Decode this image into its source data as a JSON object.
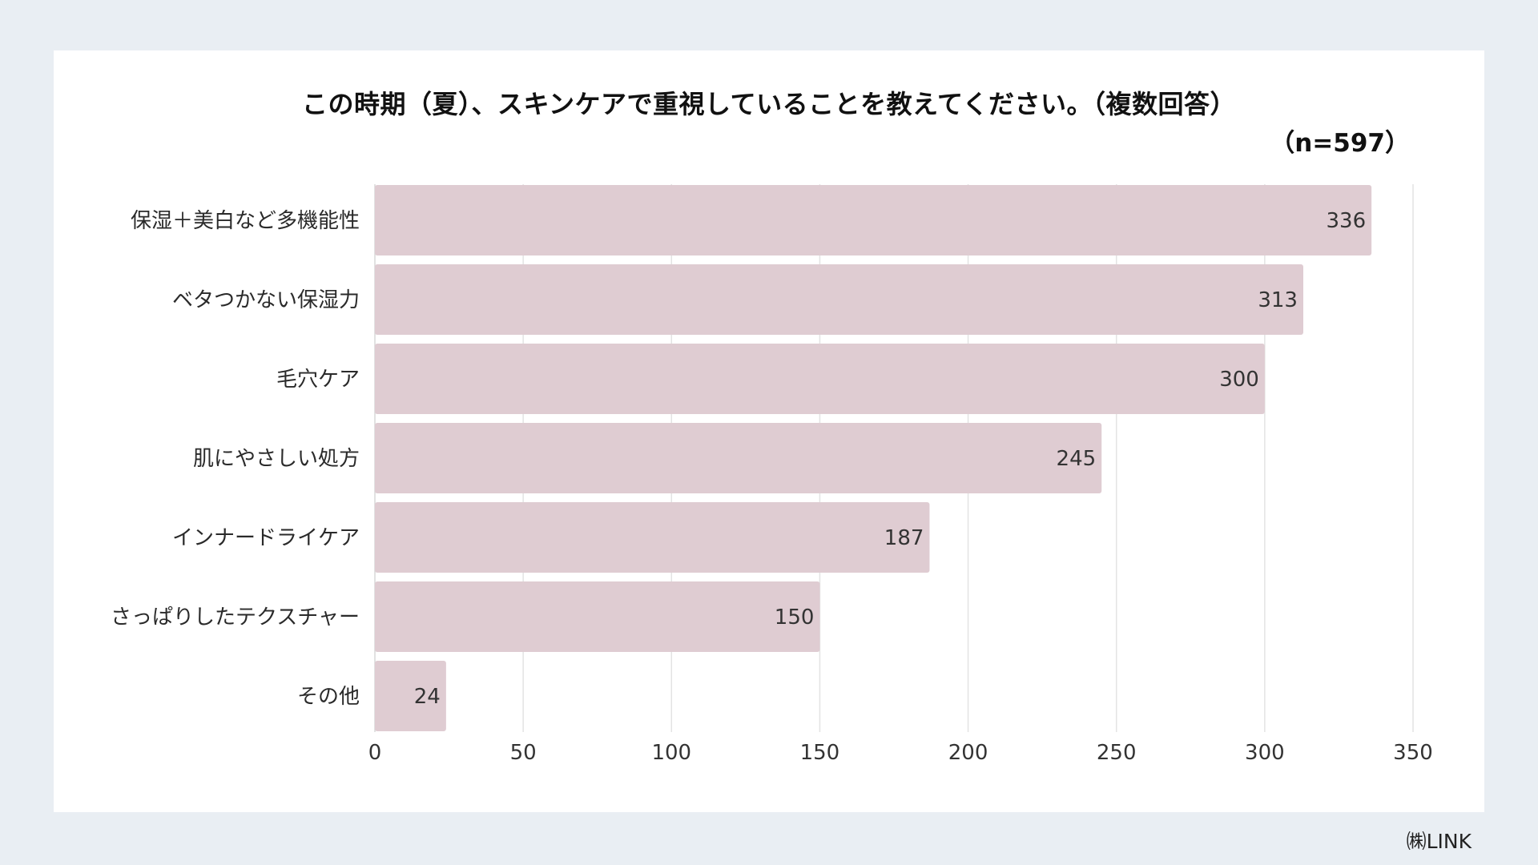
{
  "chart_data": {
    "type": "bar",
    "orientation": "horizontal",
    "title": "この時期（夏）、スキンケアで重視していることを教えてください。（複数回答）",
    "note": "（n=597）",
    "categories": [
      "保湿＋美白など多機能性",
      "ベタつかない保湿力",
      "毛穴ケア",
      "肌にやさしい処方",
      "インナードライケア",
      "さっぱりしたテクスチャー",
      "その他"
    ],
    "values": [
      336,
      313,
      300,
      245,
      187,
      150,
      24
    ],
    "xlim": [
      0,
      350
    ],
    "xticks": [
      0,
      50,
      100,
      150,
      200,
      250,
      300,
      350
    ],
    "xlabel": "",
    "ylabel": "",
    "grid": true,
    "data_labels": true,
    "bar_color": "#dfccd2",
    "grid_color": "#e3e3e3"
  },
  "footer": {
    "credit": "㈱LINK"
  }
}
